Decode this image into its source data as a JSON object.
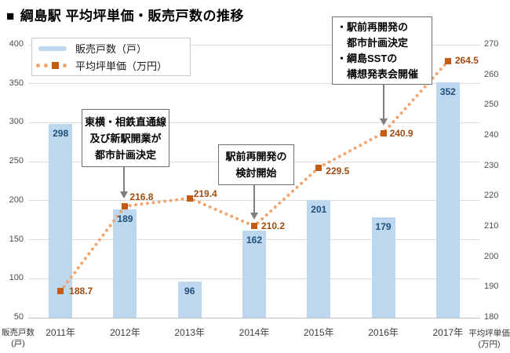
{
  "header": {
    "square": "■",
    "title": "綱島駅 平均坪単価・販売戸数の推移"
  },
  "legend": {
    "items": [
      {
        "label": "販売戸数（戸）"
      },
      {
        "label": "平均坪単価（万円）"
      }
    ]
  },
  "chart_data": {
    "type": "combo-bar-line",
    "title": "綱島駅 平均坪単価・販売戸数の推移",
    "categories": [
      "2011年",
      "2012年",
      "2013年",
      "2014年",
      "2015年",
      "2016年",
      "2017年"
    ],
    "series": [
      {
        "name": "販売戸数（戸）",
        "type": "bar",
        "axis": "left",
        "values": [
          298,
          189,
          96,
          162,
          201,
          179,
          352
        ]
      },
      {
        "name": "平均坪単価（万円）",
        "type": "line",
        "axis": "right",
        "values": [
          188.7,
          216.8,
          219.4,
          210.2,
          229.5,
          240.9,
          264.5
        ],
        "label_offsets": [
          [
            11,
            -7
          ],
          [
            6,
            -19
          ],
          [
            5,
            -13
          ],
          [
            9,
            -7
          ],
          [
            9,
            -3
          ],
          [
            8,
            -7
          ],
          [
            9,
            -8
          ]
        ]
      }
    ],
    "left_axis": {
      "min": 50,
      "max": 400,
      "step": 50,
      "ticks": [
        400,
        350,
        300,
        250,
        200,
        150,
        100,
        50
      ],
      "caption_line1": "販売戸数",
      "caption_line2": "(戸)"
    },
    "right_axis": {
      "min": 180,
      "max": 270,
      "step": 10,
      "ticks": [
        270,
        260,
        250,
        240,
        230,
        220,
        210,
        200,
        190,
        180
      ],
      "caption_line1": "平均坪単価",
      "caption_line2": "(万円)"
    },
    "grid": true,
    "legend_position": "top-left"
  },
  "annotations": [
    {
      "lines": [
        "東横・相鉄直通線",
        "及び新駅開業が",
        "都市計画決定"
      ]
    },
    {
      "lines": [
        "駅前再開発の",
        "検討開始"
      ]
    },
    {
      "lines": [
        "・駅前再開発の",
        "　都市計画決定",
        "・綱島SSTの",
        "　構想発表会開催"
      ]
    }
  ],
  "colors": {
    "bar": "#BDD7EE",
    "bar_label": "#1F4E79",
    "line": "#F0A470",
    "marker": "#C55A11",
    "line_label": "#A34B0F",
    "grid": "#dcdcdc",
    "axis_line": "#bfbfbf",
    "tick_text": "#4d4d4d",
    "arrow": "#7f7f7f"
  }
}
